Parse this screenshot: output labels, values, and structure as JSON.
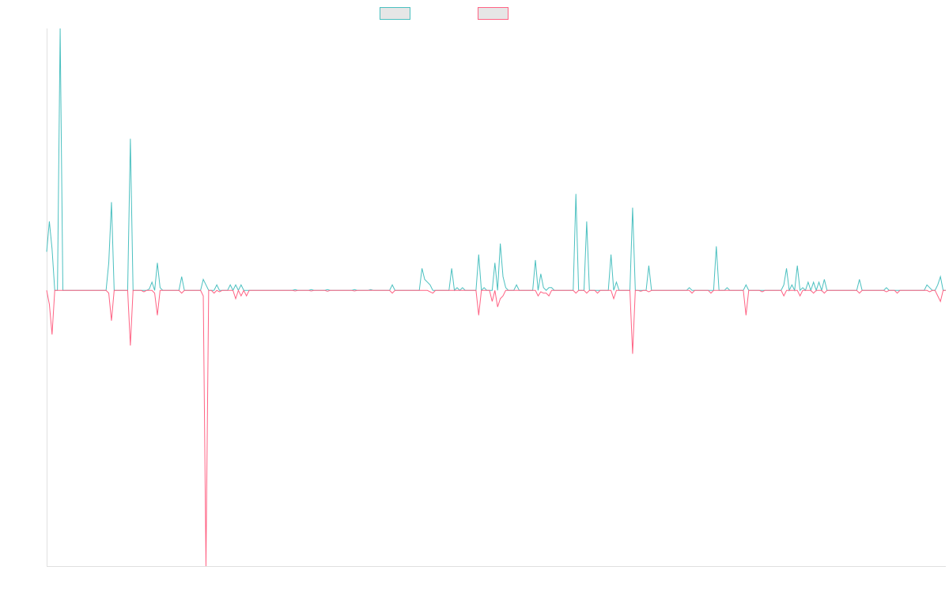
{
  "chart_data": {
    "type": "line",
    "title": "",
    "xlabel": "",
    "ylabel": "",
    "grid": false,
    "legend_position": "top",
    "x_count": 334,
    "ylim": [
      -100,
      95
    ],
    "series": [
      {
        "color": "#4bc0c0",
        "sparse": {
          "0": 14,
          "1": 25,
          "2": 15,
          "3": 0,
          "4": 0,
          "5": 95,
          "6": 0,
          "23": 10,
          "24": 32,
          "25": 0,
          "31": 55,
          "32": 0,
          "38": 0.5,
          "39": 3,
          "40": 0,
          "41": 10,
          "42": 1,
          "50": 5,
          "51": 0,
          "58": 4,
          "59": 2,
          "60": 0,
          "61": 0,
          "62": 0,
          "63": 2,
          "64": 0,
          "67": 0,
          "68": 2,
          "69": 0,
          "70": 2,
          "71": 0,
          "72": 2,
          "73": 0,
          "92": 0.3,
          "98": 0.3,
          "104": 0.3,
          "114": 0.3,
          "120": 0.3,
          "128": 2,
          "139": 8,
          "140": 4,
          "141": 3,
          "142": 2,
          "143": 0,
          "150": 8,
          "151": 0,
          "152": 1,
          "153": 0,
          "154": 1,
          "155": 0,
          "160": 13,
          "161": 0,
          "162": 1,
          "163": 0,
          "166": 10,
          "167": 0,
          "168": 17,
          "169": 5,
          "170": 1,
          "171": 0,
          "174": 2,
          "175": 0,
          "176": 0,
          "177": 0,
          "181": 11,
          "182": 0,
          "183": 6,
          "184": 1,
          "185": 0,
          "186": 1,
          "187": 1,
          "195": 0,
          "196": 35,
          "197": 0,
          "198": 0,
          "199": 0,
          "200": 25,
          "201": 0,
          "202": 0,
          "203": 0,
          "209": 13,
          "210": 0,
          "211": 3,
          "212": 0,
          "213": 0,
          "214": 0,
          "216": 0,
          "217": 30,
          "218": 0,
          "219": 0,
          "220": 0,
          "221": 0,
          "222": 0,
          "223": 9,
          "224": 0,
          "238": 1,
          "239": 0,
          "240": 0,
          "245": 0,
          "246": 0,
          "247": 0,
          "248": 16,
          "249": 0,
          "252": 1,
          "253": 0,
          "256": 0,
          "257": 0,
          "258": 0,
          "259": 2,
          "260": 0,
          "261": 0,
          "265": 0,
          "266": 0,
          "267": 0,
          "272": 0,
          "273": 2,
          "274": 8,
          "275": 0,
          "276": 2,
          "277": 0,
          "278": 9,
          "279": 0,
          "280": 1,
          "281": 0,
          "282": 3,
          "283": 0,
          "284": 3,
          "285": 0,
          "286": 3,
          "287": 0,
          "288": 4,
          "289": 0,
          "300": 0,
          "301": 4,
          "302": 0,
          "306": 0,
          "307": 0,
          "308": 0,
          "309": 0,
          "310": 0,
          "311": 1,
          "312": 0,
          "315": 0,
          "316": 0,
          "317": 0,
          "325": 0,
          "326": 2,
          "327": 1,
          "328": 0,
          "329": 0,
          "330": 2,
          "331": 5,
          "332": 0,
          "333": 0
        }
      },
      {
        "color": "#ff6384",
        "sparse": {
          "0": 0,
          "1": -5,
          "2": -16,
          "3": 0,
          "23": -1,
          "24": -11,
          "25": 0,
          "31": -20,
          "32": 0,
          "36": -0.5,
          "37": 0,
          "40": -1,
          "41": -9,
          "42": 0,
          "50": -1,
          "51": 0,
          "58": -2,
          "59": -100,
          "60": 0,
          "61": 0,
          "62": -1,
          "63": 0,
          "64": -0.5,
          "65": 0,
          "66": 0,
          "70": -3,
          "71": 0,
          "72": -2,
          "73": 0,
          "74": -2,
          "75": 0,
          "92": -0.2,
          "98": -0.2,
          "104": -0.3,
          "114": -0.2,
          "128": -1,
          "129": 0,
          "140": 0,
          "141": 0,
          "142": -0.5,
          "143": -1,
          "144": 0,
          "159": 0,
          "160": -9,
          "161": 0,
          "164": 0,
          "165": -4,
          "166": 0,
          "167": -6,
          "168": -3,
          "169": -2,
          "170": 0,
          "171": 0,
          "181": 0,
          "182": -2,
          "183": -0.5,
          "184": -1,
          "185": -1,
          "186": -2,
          "187": 0,
          "188": 0,
          "196": -1,
          "197": 0,
          "200": -1,
          "201": 0,
          "204": -1,
          "205": 0,
          "209": 0,
          "210": -3,
          "211": 0,
          "212": 0,
          "213": 0,
          "216": 0,
          "217": -23,
          "218": 0,
          "219": 0,
          "220": -0.3,
          "221": 0,
          "222": 0,
          "223": -0.5,
          "224": 0,
          "238": 0,
          "239": -1,
          "240": 0,
          "245": 0,
          "246": -1,
          "247": 0,
          "248": 0,
          "252": 0,
          "253": 0,
          "258": 0,
          "259": -9,
          "260": 0,
          "261": 0,
          "265": -0.5,
          "266": 0,
          "272": 0,
          "273": -2,
          "274": 0,
          "279": -2,
          "280": 0,
          "283": 0,
          "284": -1,
          "285": 0,
          "286": 0,
          "287": 0,
          "288": -1,
          "289": 0,
          "300": 0,
          "301": -1,
          "302": 0,
          "310": 0,
          "311": -0.5,
          "312": 0,
          "314": 0,
          "315": -1,
          "316": 0,
          "326": 0,
          "327": -0.5,
          "328": 0,
          "329": 0,
          "330": -2,
          "331": -4,
          "332": 0,
          "333": 0
        }
      }
    ]
  }
}
